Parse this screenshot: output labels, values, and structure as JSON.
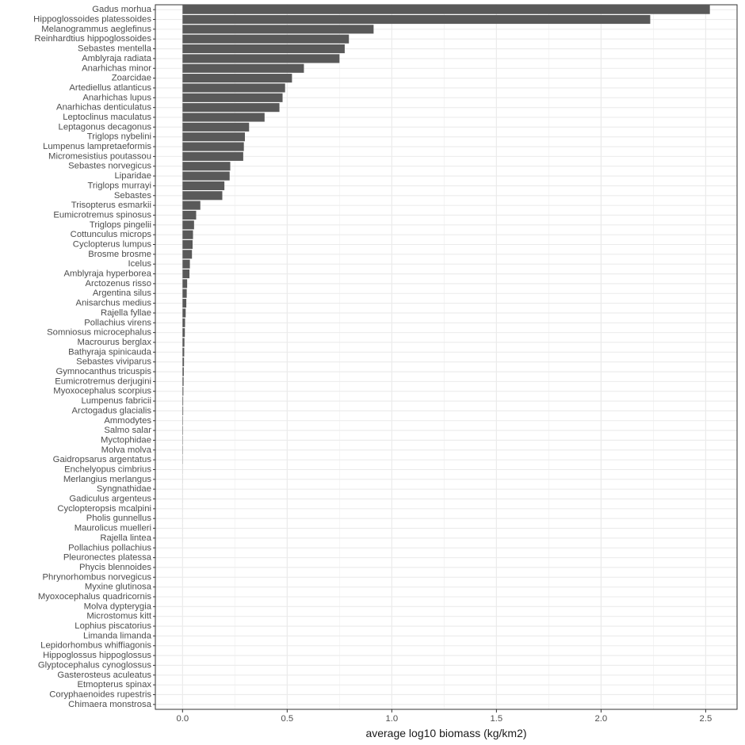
{
  "chart_data": {
    "type": "bar",
    "orientation": "horizontal",
    "title": "",
    "xlabel": "average log10 biomass (kg/km2)",
    "ylabel": "",
    "xlim": [
      -0.13,
      2.65
    ],
    "xticks": [
      0.0,
      0.5,
      1.0,
      1.5,
      2.0,
      2.5
    ],
    "xtick_labels": [
      "0.0",
      "0.5",
      "1.0",
      "1.5",
      "2.0",
      "2.5"
    ],
    "grid": true,
    "legend": "none",
    "bar_color": "#595959",
    "categories": [
      "Gadus morhua",
      "Hippoglossoides platessoides",
      "Melanogrammus aeglefinus",
      "Reinhardtius hippoglossoides",
      "Sebastes mentella",
      "Amblyraja radiata",
      "Anarhichas minor",
      "Zoarcidae",
      "Artediellus atlanticus",
      "Anarhichas lupus",
      "Anarhichas denticulatus",
      "Leptoclinus maculatus",
      "Leptagonus decagonus",
      "Triglops nybelini",
      "Lumpenus lampretaeformis",
      "Micromesistius poutassou",
      "Sebastes norvegicus",
      "Liparidae",
      "Triglops murrayi",
      "Sebastes",
      "Trisopterus esmarkii",
      "Eumicrotremus spinosus",
      "Triglops pingelii",
      "Cottunculus microps",
      "Cyclopterus lumpus",
      "Brosme brosme",
      "Icelus",
      "Amblyraja hyperborea",
      "Arctozenus risso",
      "Argentina silus",
      "Anisarchus medius",
      "Rajella fyllae",
      "Pollachius virens",
      "Somniosus microcephalus",
      "Macrourus berglax",
      "Bathyraja spinicauda",
      "Sebastes viviparus",
      "Gymnocanthus tricuspis",
      "Eumicrotremus derjugini",
      "Myoxocephalus scorpius",
      "Lumpenus fabricii",
      "Arctogadus glacialis",
      "Ammodytes",
      "Salmo salar",
      "Myctophidae",
      "Molva molva",
      "Gaidropsarus argentatus",
      "Enchelyopus cimbrius",
      "Merlangius merlangus",
      "Syngnathidae",
      "Gadiculus argenteus",
      "Cyclopteropsis mcalpini",
      "Pholis gunnellus",
      "Maurolicus muelleri",
      "Rajella lintea",
      "Pollachius pollachius",
      "Pleuronectes platessa",
      "Phycis blennoides",
      "Phrynorhombus norvegicus",
      "Myxine glutinosa",
      "Myoxocephalus quadricornis",
      "Molva dypterygia",
      "Microstomus kitt",
      "Lophius piscatorius",
      "Limanda limanda",
      "Lepidorhombus whiffiagonis",
      "Hippoglossus hippoglossus",
      "Glyptocephalus cynoglossus",
      "Gasterosteus aculeatus",
      "Etmopterus spinax",
      "Coryphaenoides rupestris",
      "Chimaera monstrosa"
    ],
    "values": [
      2.52,
      2.235,
      0.913,
      0.795,
      0.775,
      0.75,
      0.58,
      0.523,
      0.49,
      0.478,
      0.463,
      0.392,
      0.318,
      0.298,
      0.293,
      0.29,
      0.228,
      0.225,
      0.2,
      0.19,
      0.085,
      0.065,
      0.055,
      0.05,
      0.048,
      0.045,
      0.035,
      0.033,
      0.022,
      0.02,
      0.018,
      0.015,
      0.012,
      0.011,
      0.009,
      0.008,
      0.007,
      0.006,
      0.005,
      0.004,
      0.003,
      0.003,
      0.002,
      0.002,
      0.0015,
      0.0015,
      0.001,
      0.0004,
      0.0003,
      0.0002,
      0.0002,
      0.0001,
      0.0001,
      0.0001,
      0.0001,
      0,
      0,
      0,
      0,
      0,
      0,
      0,
      0,
      0,
      0,
      0,
      0,
      0,
      0,
      0,
      0,
      0
    ]
  }
}
